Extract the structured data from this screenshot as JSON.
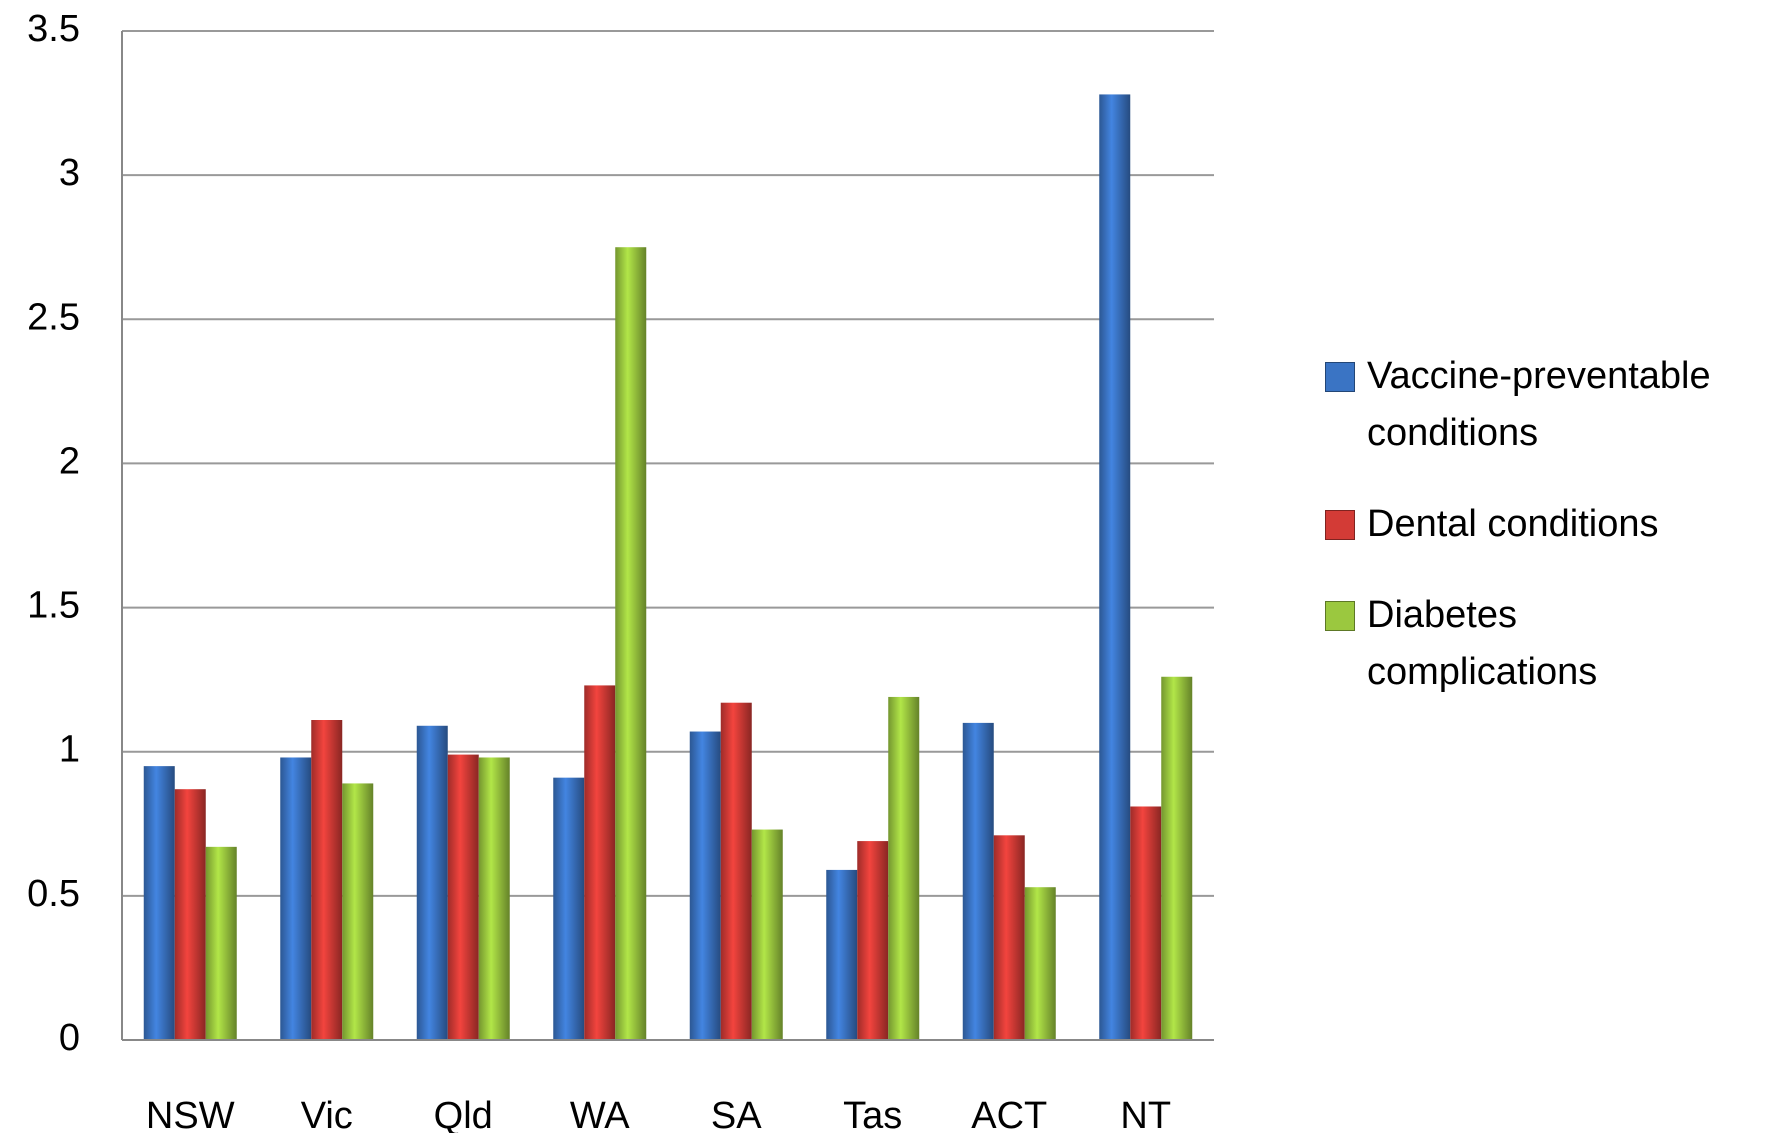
{
  "chart_data": {
    "type": "bar",
    "categories": [
      "NSW",
      "Vic",
      "Qld",
      "WA",
      "SA",
      "Tas",
      "ACT",
      "NT"
    ],
    "series": [
      {
        "name": "Vaccine-preventable\nconditions",
        "color": "#3a74c4",
        "values": [
          0.95,
          0.98,
          1.09,
          0.91,
          1.07,
          0.59,
          1.1,
          3.28
        ]
      },
      {
        "name": "Dental conditions",
        "color": "#d33b36",
        "values": [
          0.87,
          1.11,
          0.99,
          1.23,
          1.17,
          0.69,
          0.71,
          0.81
        ]
      },
      {
        "name": "Diabetes\ncomplications",
        "color": "#9bc83f",
        "values": [
          0.67,
          0.89,
          0.98,
          2.75,
          0.73,
          1.19,
          0.53,
          1.26
        ]
      }
    ],
    "ylim": [
      0,
      3.5
    ],
    "yticks": [
      0,
      0.5,
      1,
      1.5,
      2,
      2.5,
      3,
      3.5
    ],
    "grid": true,
    "legend": "right"
  }
}
